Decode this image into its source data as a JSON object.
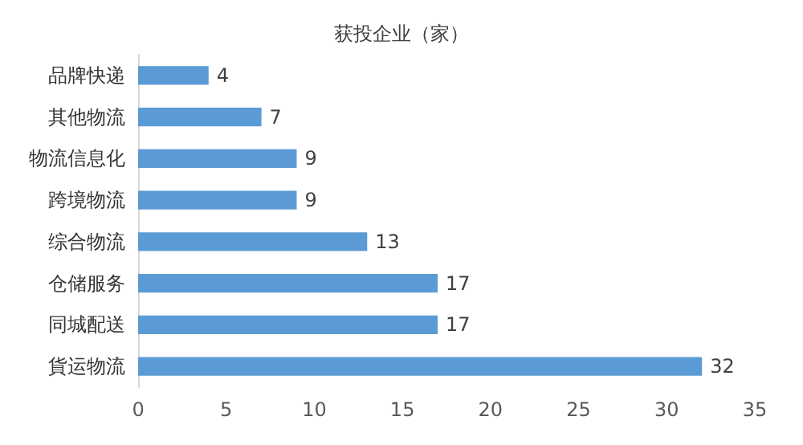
{
  "chart_data": {
    "type": "bar",
    "orientation": "horizontal",
    "title": "获投企业（家）",
    "categories": [
      "品牌快递",
      "其他物流",
      "物流信息化",
      "跨境物流",
      "综合物流",
      "仓储服务",
      "同城配送",
      "貨运物流"
    ],
    "values": [
      4,
      7,
      9,
      9,
      13,
      17,
      17,
      32
    ],
    "color": "#5b9bd5",
    "xlim": [
      0,
      35
    ],
    "xticks": [
      0,
      5,
      10,
      15,
      20,
      25,
      30,
      35
    ],
    "grid": false,
    "data_labels": true
  }
}
